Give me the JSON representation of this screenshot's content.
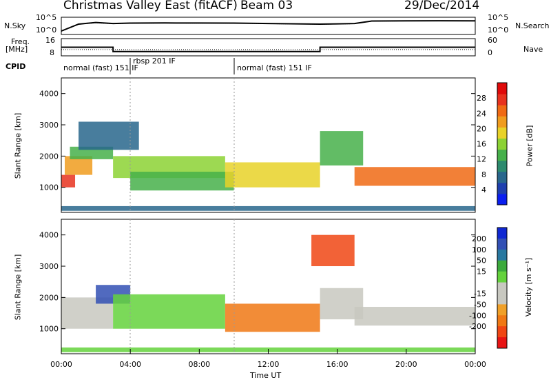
{
  "header": {
    "station": "Christmas Valley East (fitACF)",
    "beam": "Beam 03",
    "date": "29/Dec/2014"
  },
  "side_labels": {
    "nsky": "N.Sky",
    "nsky_ticks": [
      "10^5",
      "10^0"
    ],
    "nsearch": "N.Search",
    "nsearch_ticks": [
      "10^5",
      "10^0"
    ],
    "freq": "Freq.",
    "freq_unit": "[MHz]",
    "freq_ticks": [
      "16",
      "8"
    ],
    "nave": "Nave",
    "nave_ticks": [
      "60",
      "0"
    ],
    "cpid": "CPID"
  },
  "cpid_segments": [
    {
      "label": "normal (fast) 151 IF",
      "start": 0,
      "end": 4
    },
    {
      "label": "rbsp 201 IF",
      "start": 4,
      "end": 10
    },
    {
      "label": "normal (fast) 151 IF",
      "start": 10,
      "end": 24
    }
  ],
  "colors": {
    "power": [
      "#0a1ef0",
      "#1e3fae",
      "#28668c",
      "#2c8a6e",
      "#46b04a",
      "#8cd234",
      "#e8d228",
      "#f09c1e",
      "#f06a14",
      "#e8321e",
      "#e00a0a"
    ],
    "velocity": [
      "#1028d2",
      "#3250b4",
      "#2878a0",
      "#3caa3c",
      "#64d23c",
      "#c8c8c0",
      "#c8c8c0",
      "#f0a028",
      "#f07814",
      "#f04614",
      "#e81414"
    ]
  },
  "chart_data": [
    {
      "type": "line",
      "panel": "noise-sky-search",
      "x": [
        0,
        1,
        2,
        3,
        4,
        6,
        8,
        10,
        12,
        15,
        16,
        17,
        18,
        20,
        22,
        24
      ],
      "series": [
        {
          "name": "N.Sky",
          "values": [
            10,
            1000,
            3000,
            1500,
            2000,
            2200,
            2100,
            2000,
            1500,
            1000,
            1200,
            1500,
            8000,
            9000,
            9500,
            9000
          ]
        },
        {
          "name": "N.Search",
          "values": [
            8,
            800,
            2500,
            1200,
            1800,
            2000,
            1900,
            1800,
            1300,
            900,
            1000,
            1300,
            7000,
            8000,
            8500,
            8000
          ]
        }
      ],
      "ylim": [
        1,
        100000
      ],
      "yscale": "log"
    },
    {
      "type": "line",
      "panel": "frequency-nave",
      "x": [
        0,
        3,
        3,
        15,
        15,
        24
      ],
      "series": [
        {
          "name": "Freq.",
          "values": [
            12,
            12,
            10,
            10,
            12,
            12
          ]
        },
        {
          "name": "Nave",
          "values": [
            22,
            22,
            22,
            22,
            22,
            22
          ]
        }
      ],
      "ylim_freq": [
        8,
        16
      ],
      "ylim_nave": [
        0,
        60
      ]
    },
    {
      "type": "heatmap",
      "panel": "power",
      "xlabel": "",
      "ylabel": "Slant Range [km]",
      "xlim": [
        0,
        24
      ],
      "ylim": [
        200,
        4500
      ],
      "yticks": [
        1000,
        2000,
        3000,
        4000
      ],
      "colorbar_label": "Power [dB]",
      "colorbar_ticks": [
        4,
        8,
        12,
        16,
        20,
        24,
        28
      ],
      "colorbar_range": [
        0,
        32
      ],
      "features": [
        {
          "t0": 0.0,
          "t1": 0.8,
          "r0": 1000,
          "r1": 1400,
          "level": 28
        },
        {
          "t0": 0.2,
          "t1": 1.8,
          "r0": 1400,
          "r1": 2000,
          "level": 22
        },
        {
          "t0": 0.5,
          "t1": 3.0,
          "r0": 1900,
          "r1": 2300,
          "level": 12
        },
        {
          "t0": 1.0,
          "t1": 4.5,
          "r0": 2200,
          "r1": 3100,
          "level": 6
        },
        {
          "t0": 3.0,
          "t1": 9.5,
          "r0": 1300,
          "r1": 2000,
          "level": 16
        },
        {
          "t0": 4.0,
          "t1": 10.0,
          "r0": 900,
          "r1": 1500,
          "level": 14
        },
        {
          "t0": 9.5,
          "t1": 15.0,
          "r0": 1000,
          "r1": 1800,
          "level": 18
        },
        {
          "t0": 15.0,
          "t1": 17.5,
          "r0": 1700,
          "r1": 2800,
          "level": 14
        },
        {
          "t0": 17.0,
          "t1": 24.0,
          "r0": 1050,
          "r1": 1650,
          "level": 26
        },
        {
          "t0": 0.0,
          "t1": 24.0,
          "r0": 250,
          "r1": 400,
          "level": 8
        }
      ]
    },
    {
      "type": "heatmap",
      "panel": "velocity",
      "xlabel": "Time UT",
      "ylabel": "Slant Range [km]",
      "xlim": [
        0,
        24
      ],
      "ylim": [
        200,
        4500
      ],
      "yticks": [
        1000,
        2000,
        3000,
        4000
      ],
      "xticks": [
        "00:00",
        "04:00",
        "08:00",
        "12:00",
        "16:00",
        "20:00",
        "00:00"
      ],
      "colorbar_label": "Velocity [m s⁻¹]",
      "colorbar_ticks": [
        200,
        100,
        50,
        15,
        -15,
        -50,
        -100,
        -200
      ],
      "features": [
        {
          "t0": 0.0,
          "t1": 3.0,
          "r0": 1000,
          "r1": 2000,
          "level": 0
        },
        {
          "t0": 2.0,
          "t1": 4.0,
          "r0": 1800,
          "r1": 2400,
          "level": 180
        },
        {
          "t0": 3.0,
          "t1": 9.5,
          "r0": 1000,
          "r1": 2100,
          "level": 40
        },
        {
          "t0": 9.5,
          "t1": 15.0,
          "r0": 900,
          "r1": 1800,
          "level": -70
        },
        {
          "t0": 15.0,
          "t1": 17.5,
          "r0": 1300,
          "r1": 2300,
          "level": 0
        },
        {
          "t0": 17.0,
          "t1": 24.0,
          "r0": 1100,
          "r1": 1700,
          "level": 0
        },
        {
          "t0": 14.5,
          "t1": 17.0,
          "r0": 3000,
          "r1": 4000,
          "level": -180
        },
        {
          "t0": 0.0,
          "t1": 24.0,
          "r0": 250,
          "r1": 400,
          "level": 40
        }
      ]
    }
  ]
}
